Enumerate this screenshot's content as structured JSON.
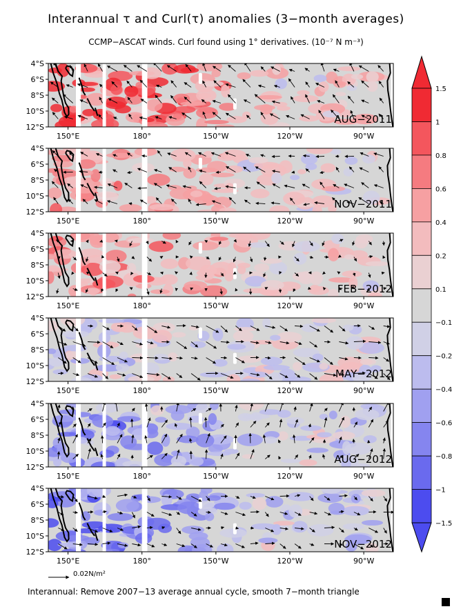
{
  "figure": {
    "title": "Interannual τ and Curl(τ) anomalies (3−month averages)",
    "subtitle": "CCMP−ASCAT winds. Curl found using 1° derivatives. (10⁻⁷ N m⁻³)",
    "footer": "Interannual: Remove 2007−13 average annual cycle, smooth 7−month triangle",
    "reference_vector_label": "0.02N/m²"
  },
  "chart_data": {
    "type": "heatmap",
    "variable": "Curl(τ) anomaly with wind stress anomaly vectors",
    "lon_range": [
      142,
      282
    ],
    "lat_range": [
      -12,
      -4
    ],
    "x_ticks": [
      {
        "lon": 150,
        "label": "150°E"
      },
      {
        "lon": 180,
        "label": "180°"
      },
      {
        "lon": 210,
        "label": "150°W"
      },
      {
        "lon": 240,
        "label": "120°W"
      },
      {
        "lon": 270,
        "label": "90°W"
      }
    ],
    "y_ticks": [
      {
        "lat": -4,
        "label": "4°S"
      },
      {
        "lat": -6,
        "label": "6°S"
      },
      {
        "lat": -8,
        "label": "8°S"
      },
      {
        "lat": -10,
        "label": "10°S"
      },
      {
        "lat": -12,
        "label": "12°S"
      }
    ],
    "colorbar": {
      "labels": [
        "1.5",
        "1",
        "0.8",
        "0.6",
        "0.4",
        "0.2",
        "0.1",
        "−0.1",
        "−0.2",
        "−0.4",
        "−0.6",
        "−0.8",
        "−1",
        "−1.5"
      ],
      "colors": [
        "#f02a33",
        "#f4565d",
        "#f57b80",
        "#f6a0a2",
        "#f3bcbe",
        "#ead0d2",
        "#d6d6d6",
        "#d0d0e6",
        "#bcbcee",
        "#a0a0f0",
        "#8585ef",
        "#6a6aee",
        "#4c4cef"
      ]
    },
    "panels": [
      {
        "label": "AUG−2011",
        "tendency": 1.0,
        "wind_u": -0.6,
        "wind_v": 0.5
      },
      {
        "label": "NOV−2011",
        "tendency": 0.55,
        "wind_u": -0.6,
        "wind_v": 0.25
      },
      {
        "label": "FEB−2012",
        "tendency": 0.5,
        "wind_u": 0.1,
        "wind_v": -0.2
      },
      {
        "label": "MAY−2012",
        "tendency": -0.1,
        "wind_u": 0.8,
        "wind_v": -0.3
      },
      {
        "label": "AUG−2012",
        "tendency": -0.6,
        "wind_u": 0.2,
        "wind_v": 0.6
      },
      {
        "label": "NOV−2012",
        "tendency": -0.7,
        "wind_u": 0.6,
        "wind_v": -0.2
      }
    ]
  }
}
